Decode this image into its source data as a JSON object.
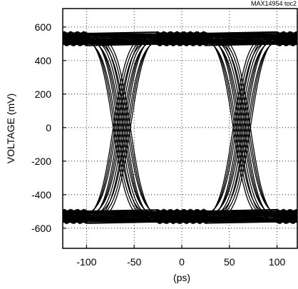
{
  "chart_data": {
    "type": "line",
    "subtype": "eye-diagram",
    "title": "",
    "doc_id": "MAX14954 toc2",
    "xlabel": "(ps)",
    "ylabel": "VOLTAGE (mV)",
    "xlim": [
      -125,
      122
    ],
    "ylim": [
      -720,
      710
    ],
    "x_ticks": [
      -100,
      -50,
      0,
      50,
      100
    ],
    "x_tick_labels": [
      "-100",
      "-50",
      "0",
      "50",
      "100"
    ],
    "y_ticks": [
      600,
      400,
      200,
      0,
      -200,
      -400,
      -600
    ],
    "y_tick_labels": [
      "600",
      "400",
      "200",
      "0",
      "-200",
      "-400",
      "-600"
    ],
    "grid": true,
    "grid_style": "dotted",
    "eye_high_level_mV": 530,
    "eye_low_level_mV": -530,
    "rail_band_mV": [
      460,
      600
    ],
    "crossing_points_ps": [
      -63,
      63
    ],
    "crossing_level_mV": 0,
    "transition_spread_ps": 18,
    "trace_color": "#000000",
    "series": [
      {
        "x": [
          -125,
          -100,
          -80,
          -63,
          -46,
          -26,
          0,
          26,
          46,
          63,
          80,
          100,
          122
        ],
        "y": [
          530,
          530,
          420,
          0,
          -420,
          -530,
          -530,
          -530,
          -420,
          0,
          420,
          530,
          530
        ]
      },
      {
        "x": [
          -125,
          -100,
          -80,
          -63,
          -46,
          -26,
          0,
          26,
          46,
          63,
          80,
          100,
          122
        ],
        "y": [
          -530,
          -530,
          -420,
          0,
          420,
          530,
          530,
          530,
          420,
          0,
          -420,
          -530,
          -530
        ]
      }
    ]
  }
}
